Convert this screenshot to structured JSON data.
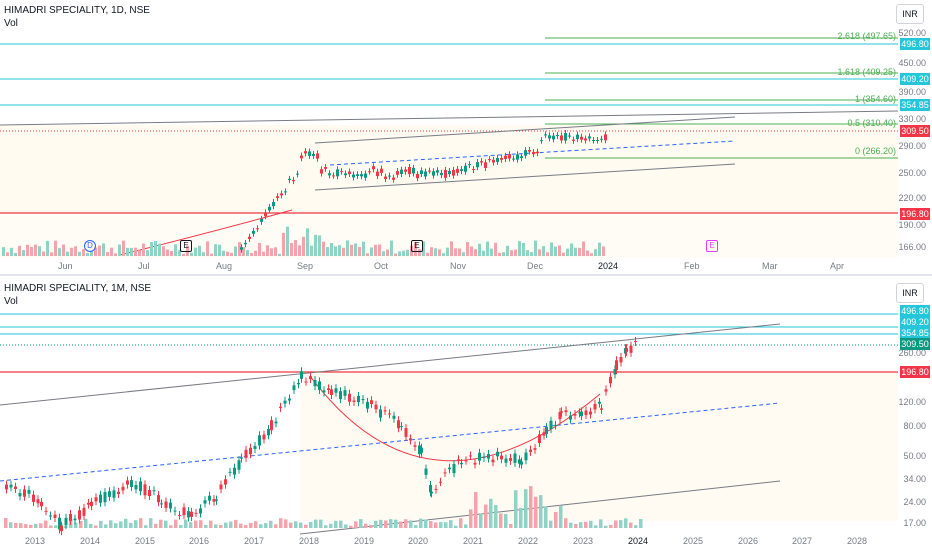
{
  "top_chart": {
    "title": "HIMADRI SPECIALITY, 1D, NSE",
    "volume_label": "Vol",
    "currency": "INR",
    "price_labels": [
      {
        "text": "496.80",
        "color": "#26c6da"
      },
      {
        "text": "409.20",
        "color": "#26c6da"
      },
      {
        "text": "354.85",
        "color": "#26c6da"
      },
      {
        "text": "309.50",
        "color": "#f23645"
      },
      {
        "text": "196.80",
        "color": "#f23645"
      }
    ],
    "y_ticks": [
      "520.00",
      "450.00",
      "390.00",
      "330.00",
      "290.00",
      "250.00",
      "220.00",
      "190.00",
      "166.00"
    ],
    "x_ticks": [
      "Jun",
      "Jul",
      "Aug",
      "Sep",
      "Oct",
      "Nov",
      "Dec",
      "2024",
      "Feb",
      "Mar",
      "Apr"
    ],
    "fib_levels": [
      {
        "text": "2.618 (497.65)"
      },
      {
        "text": "1.618 (409.25)"
      },
      {
        "text": "1 (354.60)"
      },
      {
        "text": "0.5 (310.40)"
      },
      {
        "text": "0 (266.20)"
      }
    ],
    "event_markers": [
      "D",
      "E",
      "E",
      "E"
    ]
  },
  "bottom_chart": {
    "title": "HIMADRI SPECIALITY, 1M, NSE",
    "volume_label": "Vol",
    "currency": "INR",
    "price_labels": [
      {
        "text": "496.80",
        "color": "#26c6da"
      },
      {
        "text": "409.20",
        "color": "#26c6da"
      },
      {
        "text": "354.85",
        "color": "#26c6da"
      },
      {
        "text": "309.50",
        "color": "#089981"
      },
      {
        "text": "196.80",
        "color": "#f23645"
      }
    ],
    "y_ticks": [
      "260.00",
      "120.00",
      "80.00",
      "50.00",
      "34.00",
      "24.00",
      "17.00"
    ],
    "x_ticks": [
      "2013",
      "2014",
      "2015",
      "2016",
      "2017",
      "2018",
      "2019",
      "2020",
      "2021",
      "2022",
      "2023",
      "2024",
      "2025",
      "2026",
      "2027",
      "2028"
    ]
  },
  "colors": {
    "up": "#089981",
    "down": "#f23645",
    "cyan": "#26c6da",
    "red": "#f23645",
    "fib_green": "#4caf50",
    "channel": "#787b86",
    "dashed": "#2962ff"
  }
}
